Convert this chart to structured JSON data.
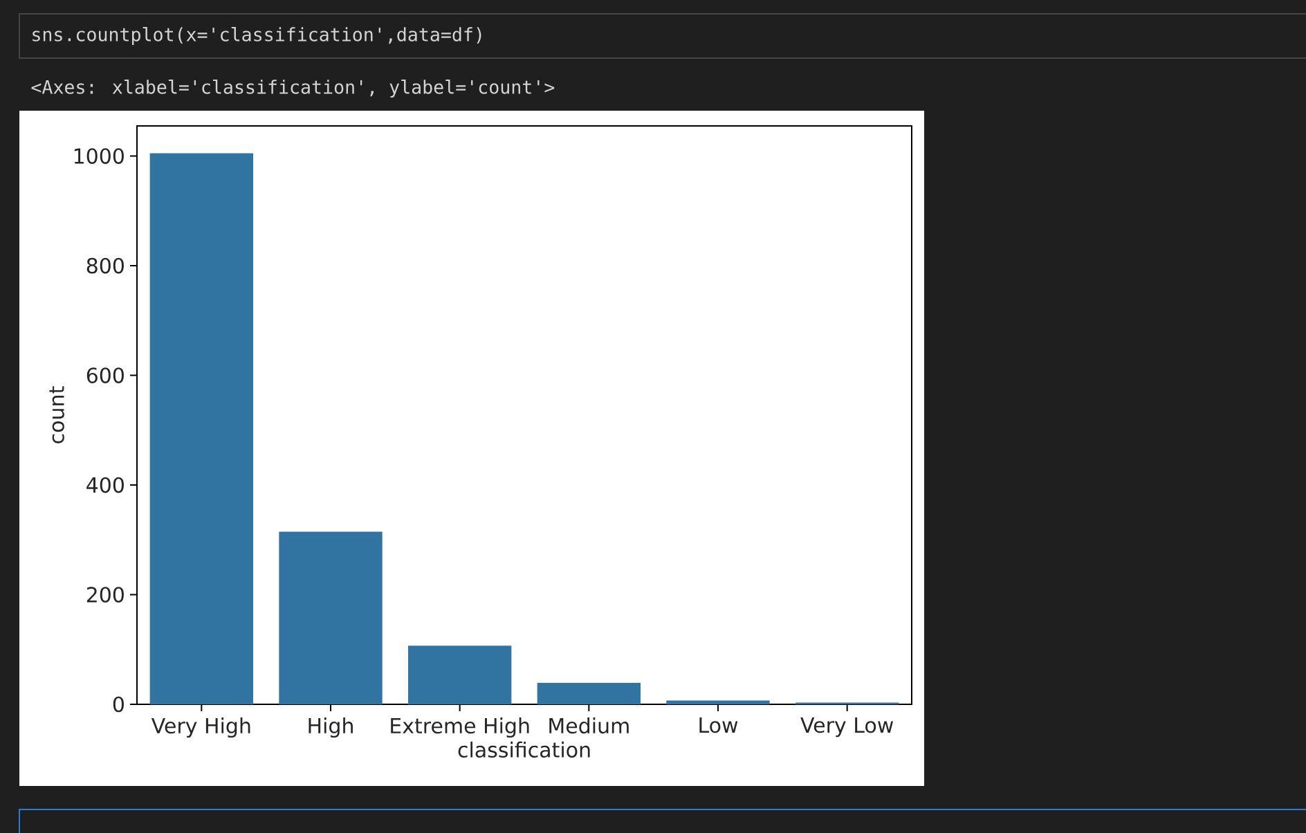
{
  "chart_data": {
    "type": "bar",
    "categories": [
      "Very High",
      "High",
      "Extreme High",
      "Medium",
      "Low",
      "Very Low"
    ],
    "values": [
      1005,
      315,
      107,
      39,
      7,
      3
    ],
    "color": "#3274a1",
    "xlabel": "classification",
    "ylabel": "count",
    "ylim": [
      0,
      1055
    ],
    "yticks": [
      0,
      200,
      400,
      600,
      800,
      1000
    ],
    "annotations": [
      "sns.countplot(x='classification',data=df)",
      "<Axes: xlabel='classification', ylabel='count'>"
    ]
  }
}
